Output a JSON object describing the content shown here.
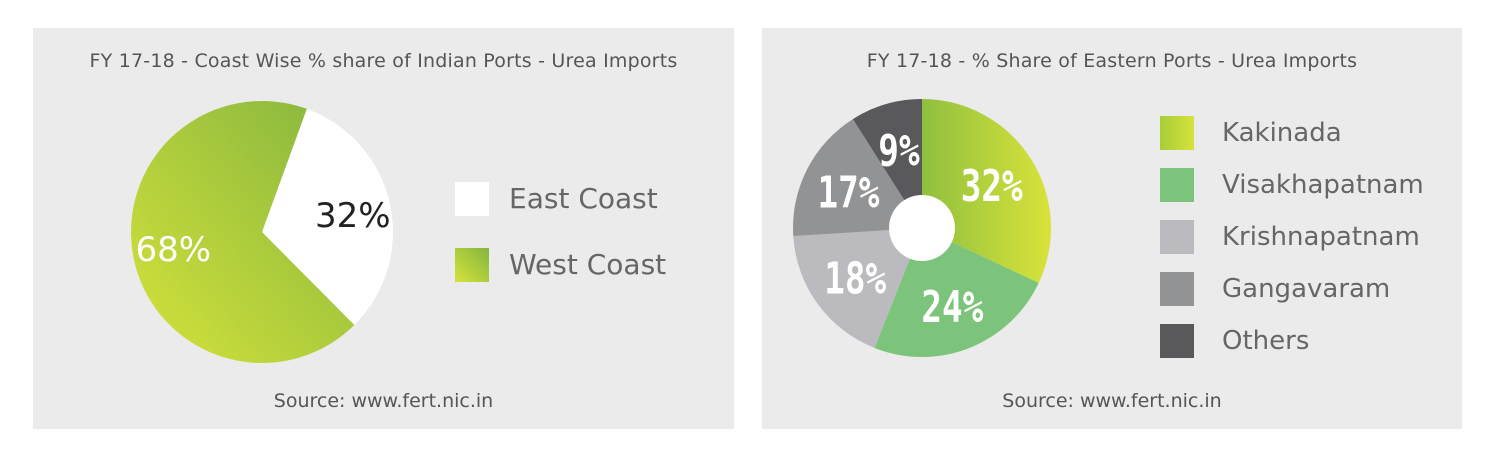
{
  "chart_data": [
    {
      "type": "pie",
      "title": "FY 17-18 - Coast Wise % share of Indian Ports - Urea Imports",
      "source": "Source: www.fert.nic.in",
      "slices": [
        {
          "name": "East Coast",
          "value": 32,
          "label": "32%",
          "color": "#ffffff"
        },
        {
          "name": "West Coast",
          "value": 68,
          "label": "68%",
          "color": "#b5d136"
        }
      ],
      "legend_position": "right"
    },
    {
      "type": "pie",
      "subtype": "donut",
      "title": "FY 17-18 - % Share of Eastern Ports - Urea Imports",
      "source": "Source: www.fert.nic.in",
      "slices": [
        {
          "name": "Kakinada",
          "value": 32,
          "label": "32%",
          "color": "#a9cc3a"
        },
        {
          "name": "Visakhapatnam",
          "value": 24,
          "label": "24%",
          "color": "#7cc47c"
        },
        {
          "name": "Krishnapatnam",
          "value": 18,
          "label": "18%",
          "color": "#bbbbbf"
        },
        {
          "name": "Gangavaram",
          "value": 17,
          "label": "17%",
          "color": "#929395"
        },
        {
          "name": "Others",
          "value": 9,
          "label": "9%",
          "color": "#59595b"
        }
      ],
      "legend_position": "right"
    }
  ]
}
